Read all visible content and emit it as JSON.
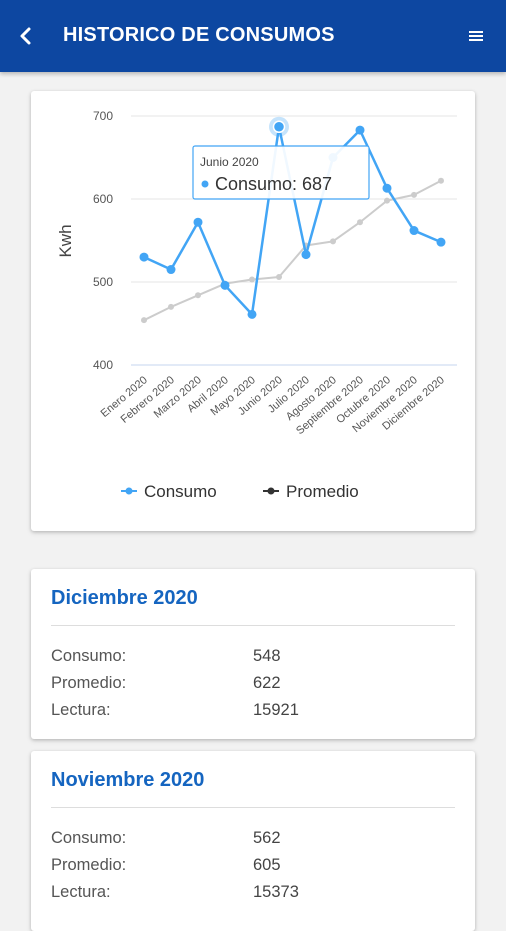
{
  "header": {
    "title": "HISTORICO DE CONSUMOS",
    "back_icon": "chevron-left-icon",
    "menu_icon": "hamburger-menu-icon",
    "color": "#0d47a1"
  },
  "chart_data": {
    "type": "line",
    "categories": [
      "Enero 2020",
      "Febrero 2020",
      "Marzo 2020",
      "Abril 2020",
      "Mayo 2020",
      "Junio 2020",
      "Julio 2020",
      "Agosto 2020",
      "Septiembre 2020",
      "Octubre 2020",
      "Noviembre 2020",
      "Diciembre 2020"
    ],
    "series": [
      {
        "name": "Consumo",
        "color": "#42a5f5",
        "values": [
          530,
          515,
          572,
          496,
          461,
          687,
          533,
          650,
          683,
          613,
          562,
          548
        ]
      },
      {
        "name": "Promedio",
        "color": "#cccccc",
        "values": [
          454,
          470,
          484,
          498,
          503,
          506,
          544,
          549,
          572,
          598,
          605,
          622
        ]
      }
    ],
    "ylabel": "Kwh",
    "yticks": [
      400,
      500,
      600,
      700
    ],
    "ylim": [
      400,
      700
    ],
    "grid": true,
    "legend_position": "bottom",
    "legend_marker_colors": {
      "Consumo": "#42a5f5",
      "Promedio": "#333333"
    },
    "tooltip": {
      "category": "Junio 2020",
      "series": "Consumo",
      "value": 687,
      "title": "Junio 2020",
      "text": "Consumo: 687"
    }
  },
  "cards": [
    {
      "title": "Diciembre 2020",
      "rows": [
        {
          "label": "Consumo:",
          "value": "548"
        },
        {
          "label": "Promedio:",
          "value": "622"
        },
        {
          "label": "Lectura:",
          "value": "15921"
        }
      ]
    },
    {
      "title": "Noviembre 2020",
      "rows": [
        {
          "label": "Consumo:",
          "value": "562"
        },
        {
          "label": "Promedio:",
          "value": "605"
        },
        {
          "label": "Lectura:",
          "value": "15373"
        }
      ]
    }
  ]
}
